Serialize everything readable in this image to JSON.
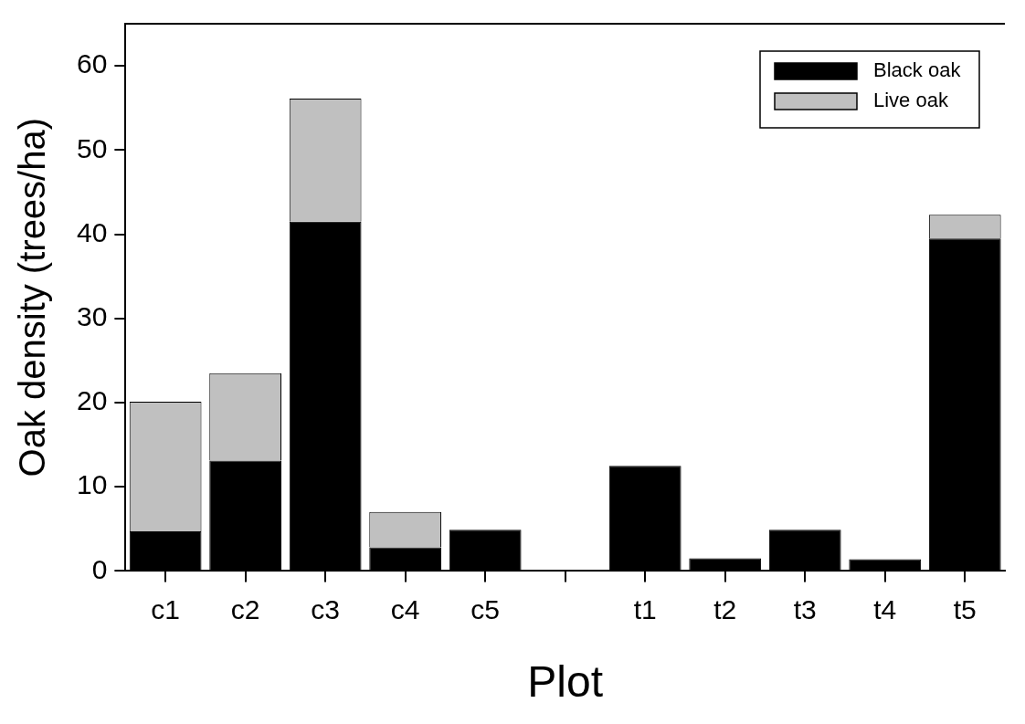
{
  "chart_data": {
    "type": "bar",
    "stacked": true,
    "xlabel": "Plot",
    "ylabel": "Oak density (trees/ha)",
    "categories": [
      "c1",
      "c2",
      "c3",
      "c4",
      "c5",
      null,
      "t1",
      "t2",
      "t3",
      "t4",
      "t5"
    ],
    "series": [
      {
        "name": "Black oak",
        "color": "#000000",
        "values": [
          4.7,
          13.1,
          41.5,
          2.8,
          4.9,
          null,
          12.5,
          1.5,
          4.9,
          1.4,
          39.5
        ]
      },
      {
        "name": "Live oak",
        "color": "#c0c0c0",
        "values": [
          15.4,
          10.4,
          14.6,
          4.2,
          null,
          null,
          null,
          null,
          null,
          null,
          2.8
        ]
      }
    ],
    "ylim": [
      0,
      65
    ],
    "yticks": [
      0,
      10,
      20,
      30,
      40,
      50,
      60
    ],
    "grid": false,
    "legend": "top right"
  }
}
